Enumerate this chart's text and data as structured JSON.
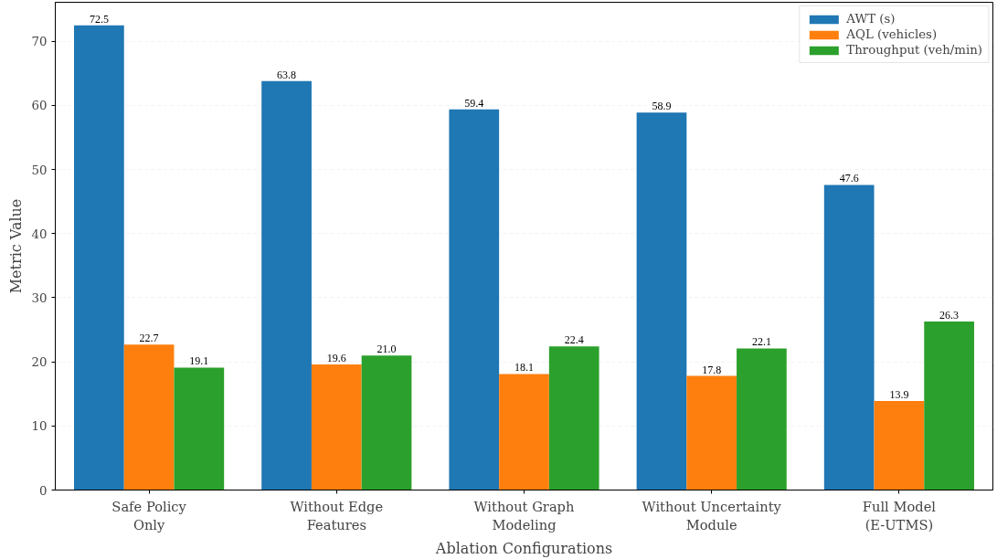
{
  "chart_data": {
    "type": "bar",
    "xlabel": "Ablation Configurations",
    "ylabel": "Metric Value",
    "categories": [
      "Safe Policy\nOnly",
      "Without Edge\nFeatures",
      "Without Graph\nModeling",
      "Without Uncertainty\nModule",
      "Full Model\n(E-UTMS)"
    ],
    "series": [
      {
        "name": "AWT (s)",
        "color": "#1f77b4",
        "values": [
          72.5,
          63.8,
          59.4,
          58.9,
          47.6
        ],
        "value_labels": [
          "72.5",
          "63.8",
          "59.4",
          "58.9",
          "47.6"
        ]
      },
      {
        "name": "AQL (vehicles)",
        "color": "#ff7f0e",
        "values": [
          22.7,
          19.6,
          18.1,
          17.8,
          13.9
        ],
        "value_labels": [
          "22.7",
          "19.6",
          "18.1",
          "17.8",
          "13.9"
        ]
      },
      {
        "name": "Throughput (veh/min)",
        "color": "#2ca02c",
        "values": [
          19.1,
          21.0,
          22.4,
          22.1,
          26.3
        ],
        "value_labels": [
          "19.1",
          "21.0",
          "22.4",
          "22.1",
          "26.3"
        ]
      }
    ],
    "ylim": [
      0,
      76.1
    ],
    "yticks": [
      0,
      10,
      20,
      30,
      40,
      50,
      60,
      70
    ],
    "grid": "y",
    "legend": "top right"
  }
}
